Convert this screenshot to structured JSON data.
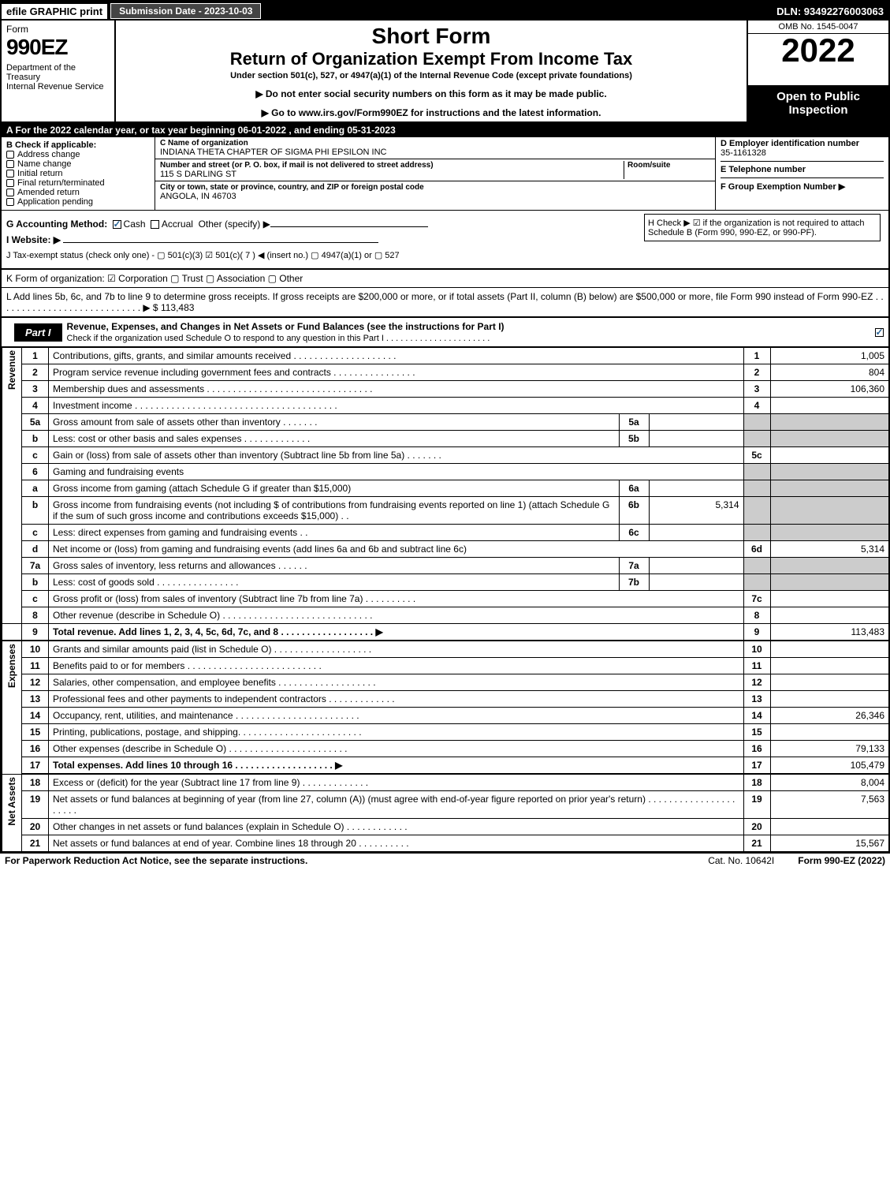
{
  "topbar": {
    "efile": "efile GRAPHIC print",
    "subdate": "Submission Date - 2023-10-03",
    "dln": "DLN: 93492276003063"
  },
  "header": {
    "form": "Form",
    "f990": "990EZ",
    "dept": "Department of the Treasury\nInternal Revenue Service",
    "short": "Short Form",
    "ret": "Return of Organization Exempt From Income Tax",
    "under": "Under section 501(c), 527, or 4947(a)(1) of the Internal Revenue Code (except private foundations)",
    "note": "▶ Do not enter social security numbers on this form as it may be made public.",
    "goto": "▶ Go to www.irs.gov/Form990EZ for instructions and the latest information.",
    "omb": "OMB No. 1545-0047",
    "year": "2022",
    "open": "Open to Public Inspection"
  },
  "A": "A  For the 2022 calendar year, or tax year beginning 06-01-2022 , and ending 05-31-2023",
  "B": {
    "title": "B  Check if applicable:",
    "items": [
      "Address change",
      "Name change",
      "Initial return",
      "Final return/terminated",
      "Amended return",
      "Application pending"
    ]
  },
  "C": {
    "namelbl": "C Name of organization",
    "name": "INDIANA THETA CHAPTER OF SIGMA PHI EPSILON INC",
    "streetlbl": "Number and street (or P. O. box, if mail is not delivered to street address)",
    "room": "Room/suite",
    "street": "115 S DARLING ST",
    "citylbl": "City or town, state or province, country, and ZIP or foreign postal code",
    "city": "ANGOLA, IN  46703"
  },
  "D": {
    "einlbl": "D Employer identification number",
    "ein": "35-1161328",
    "tel": "E Telephone number",
    "grp": "F Group Exemption Number  ▶"
  },
  "G": "G Accounting Method:",
  "Gcash": "Cash",
  "Gacc": "Accrual",
  "Gother": "Other (specify) ▶",
  "H": "H  Check ▶  ☑  if the organization is not required to attach Schedule B (Form 990, 990-EZ, or 990-PF).",
  "I": "I Website: ▶",
  "J": "J Tax-exempt status (check only one) - ▢ 501(c)(3)  ☑ 501(c)( 7 ) ◀ (insert no.)  ▢ 4947(a)(1) or  ▢ 527",
  "K": "K Form of organization:   ☑ Corporation   ▢ Trust   ▢ Association   ▢ Other",
  "L": "L Add lines 5b, 6c, and 7b to line 9 to determine gross receipts. If gross receipts are $200,000 or more, or if total assets (Part II, column (B) below) are $500,000 or more, file Form 990 instead of Form 990-EZ . . . . . . . . . . . . . . . . . . . . . . . . . . . . ▶ $ 113,483",
  "part1": {
    "lbl": "Part I",
    "txt": "Revenue, Expenses, and Changes in Net Assets or Fund Balances (see the instructions for Part I)",
    "sub": "Check if the organization used Schedule O to respond to any question in this Part I . . . . . . . . . . . . . . . . . . . . . ."
  },
  "vlabels": {
    "rev": "Revenue",
    "exp": "Expenses",
    "net": "Net Assets"
  },
  "lines": {
    "1": {
      "n": "1",
      "d": "Contributions, gifts, grants, and similar amounts received . . . . . . . . . . . . . . . . . . . .",
      "r": "1",
      "a": "1,005"
    },
    "2": {
      "n": "2",
      "d": "Program service revenue including government fees and contracts . . . . . . . . . . . . . . . .",
      "r": "2",
      "a": "804"
    },
    "3": {
      "n": "3",
      "d": "Membership dues and assessments . . . . . . . . . . . . . . . . . . . . . . . . . . . . . . . .",
      "r": "3",
      "a": "106,360"
    },
    "4": {
      "n": "4",
      "d": "Investment income . . . . . . . . . . . . . . . . . . . . . . . . . . . . . . . . . . . . . . .",
      "r": "4",
      "a": ""
    },
    "5a": {
      "n": "5a",
      "d": "Gross amount from sale of assets other than inventory . . . . . . .",
      "s": "5a",
      "sv": ""
    },
    "5b": {
      "n": "b",
      "d": "Less: cost or other basis and sales expenses . . . . . . . . . . . . .",
      "s": "5b",
      "sv": ""
    },
    "5c": {
      "n": "c",
      "d": "Gain or (loss) from sale of assets other than inventory (Subtract line 5b from line 5a) . . . . . . .",
      "r": "5c",
      "a": ""
    },
    "6": {
      "n": "6",
      "d": "Gaming and fundraising events"
    },
    "6a": {
      "n": "a",
      "d": "Gross income from gaming (attach Schedule G if greater than $15,000)",
      "s": "6a",
      "sv": ""
    },
    "6b": {
      "n": "b",
      "d": "Gross income from fundraising events (not including $                      of contributions from fundraising events reported on line 1) (attach Schedule G if the sum of such gross income and contributions exceeds $15,000)      . .",
      "s": "6b",
      "sv": "5,314"
    },
    "6c": {
      "n": "c",
      "d": "Less: direct expenses from gaming and fundraising events      . .",
      "s": "6c",
      "sv": ""
    },
    "6d": {
      "n": "d",
      "d": "Net income or (loss) from gaming and fundraising events (add lines 6a and 6b and subtract line 6c)",
      "r": "6d",
      "a": "5,314"
    },
    "7a": {
      "n": "7a",
      "d": "Gross sales of inventory, less returns and allowances . . . . . .",
      "s": "7a",
      "sv": ""
    },
    "7b": {
      "n": "b",
      "d": "Less: cost of goods sold         . . . . . . . . . . . . . . . .",
      "s": "7b",
      "sv": ""
    },
    "7c": {
      "n": "c",
      "d": "Gross profit or (loss) from sales of inventory (Subtract line 7b from line 7a) . . . . . . . . . .",
      "r": "7c",
      "a": ""
    },
    "8": {
      "n": "8",
      "d": "Other revenue (describe in Schedule O) . . . . . . . . . . . . . . . . . . . . . . . . . . . . .",
      "r": "8",
      "a": ""
    },
    "9": {
      "n": "9",
      "d": "Total revenue. Add lines 1, 2, 3, 4, 5c, 6d, 7c, and 8  . . . . . . . . . . . . . . . . . .         ▶",
      "r": "9",
      "a": "113,483"
    },
    "10": {
      "n": "10",
      "d": "Grants and similar amounts paid (list in Schedule O) . . . . . . . . . . . . . . . . . . .",
      "r": "10",
      "a": ""
    },
    "11": {
      "n": "11",
      "d": "Benefits paid to or for members        . . . . . . . . . . . . . . . . . . . . . . . . . .",
      "r": "11",
      "a": ""
    },
    "12": {
      "n": "12",
      "d": "Salaries, other compensation, and employee benefits . . . . . . . . . . . . . . . . . . .",
      "r": "12",
      "a": ""
    },
    "13": {
      "n": "13",
      "d": "Professional fees and other payments to independent contractors . . . . . . . . . . . . .",
      "r": "13",
      "a": ""
    },
    "14": {
      "n": "14",
      "d": "Occupancy, rent, utilities, and maintenance . . . . . . . . . . . . . . . . . . . . . . . .",
      "r": "14",
      "a": "26,346"
    },
    "15": {
      "n": "15",
      "d": "Printing, publications, postage, and shipping. . . . . . . . . . . . . . . . . . . . . . . .",
      "r": "15",
      "a": ""
    },
    "16": {
      "n": "16",
      "d": "Other expenses (describe in Schedule O)       . . . . . . . . . . . . . . . . . . . . . . .",
      "r": "16",
      "a": "79,133"
    },
    "17": {
      "n": "17",
      "d": "Total expenses. Add lines 10 through 16       . . . . . . . . . . . . . . . . . . .        ▶",
      "r": "17",
      "a": "105,479"
    },
    "18": {
      "n": "18",
      "d": "Excess or (deficit) for the year (Subtract line 17 from line 9)        . . . . . . . . . . . . .",
      "r": "18",
      "a": "8,004"
    },
    "19": {
      "n": "19",
      "d": "Net assets or fund balances at beginning of year (from line 27, column (A)) (must agree with end-of-year figure reported on prior year's return) . . . . . . . . . . . . . . . . . . . . . .",
      "r": "19",
      "a": "7,563"
    },
    "20": {
      "n": "20",
      "d": "Other changes in net assets or fund balances (explain in Schedule O) . . . . . . . . . . . .",
      "r": "20",
      "a": ""
    },
    "21": {
      "n": "21",
      "d": "Net assets or fund balances at end of year. Combine lines 18 through 20 . . . . . . . . . .",
      "r": "21",
      "a": "15,567"
    }
  },
  "footer": {
    "l": "For Paperwork Reduction Act Notice, see the separate instructions.",
    "c": "Cat. No. 10642I",
    "r": "Form 990-EZ (2022)"
  }
}
